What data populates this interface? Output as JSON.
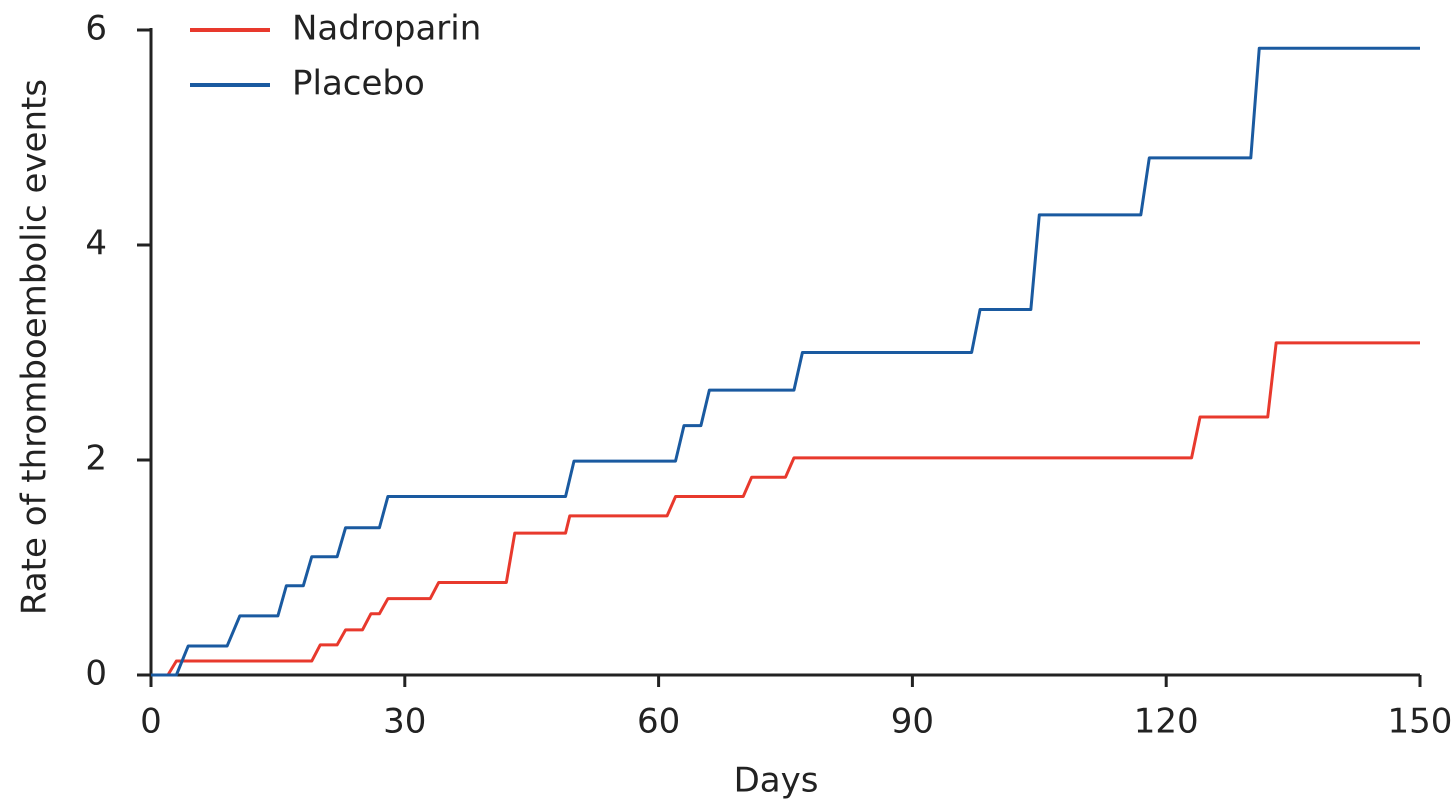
{
  "chart_data": {
    "type": "line",
    "xlabel": "Days",
    "ylabel": "Rate of thromboembolic events",
    "xlim": [
      0,
      150
    ],
    "ylim": [
      0,
      6
    ],
    "xticks": [
      0,
      30,
      60,
      90,
      120,
      150
    ],
    "yticks": [
      0,
      2,
      4,
      6
    ],
    "legend": "upper left",
    "series": [
      {
        "name": "Nadroparin",
        "color": "#e8392d",
        "x": [
          0,
          2,
          3,
          19,
          20,
          22,
          23,
          25,
          26,
          27,
          28,
          33,
          34,
          42,
          43,
          49,
          49.5,
          61,
          62,
          70,
          71,
          75,
          76,
          123,
          124,
          132,
          133,
          150
        ],
        "values": [
          0,
          0,
          0.13,
          0.13,
          0.28,
          0.28,
          0.42,
          0.42,
          0.57,
          0.57,
          0.71,
          0.71,
          0.86,
          0.86,
          1.32,
          1.32,
          1.48,
          1.48,
          1.66,
          1.66,
          1.84,
          1.84,
          2.02,
          2.02,
          2.4,
          2.4,
          3.09,
          3.09
        ]
      },
      {
        "name": "Placebo",
        "color": "#1a5aa0",
        "x": [
          0,
          3,
          4.4,
          9,
          10.5,
          15,
          16,
          18,
          19,
          22,
          23,
          27,
          28,
          49,
          50,
          62,
          63,
          65,
          66,
          76,
          77,
          97,
          98,
          104,
          105,
          117,
          118,
          130,
          131,
          150
        ],
        "values": [
          0,
          0,
          0.27,
          0.27,
          0.55,
          0.55,
          0.83,
          0.83,
          1.1,
          1.1,
          1.37,
          1.37,
          1.66,
          1.66,
          1.99,
          1.99,
          2.32,
          2.32,
          2.65,
          2.65,
          3.0,
          3.0,
          3.4,
          3.4,
          4.28,
          4.28,
          4.81,
          4.81,
          5.83,
          5.83
        ]
      }
    ]
  }
}
